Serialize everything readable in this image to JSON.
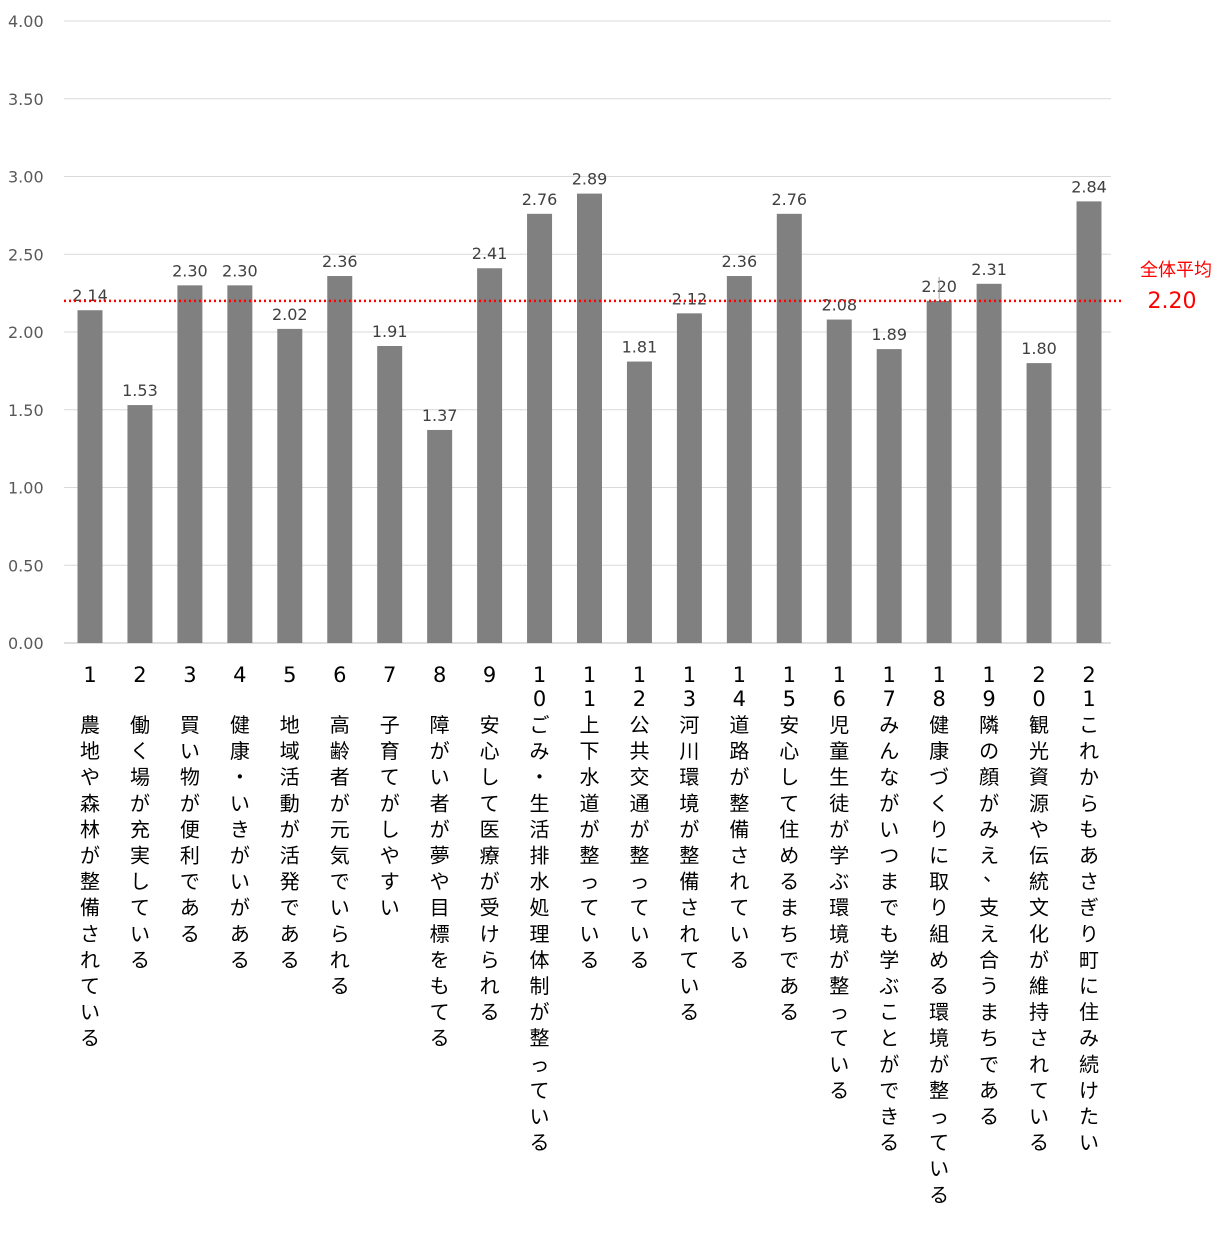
{
  "chart_data": {
    "type": "bar",
    "ylim": [
      0,
      4
    ],
    "yticks": [
      "0.00",
      "0.50",
      "1.00",
      "1.50",
      "2.00",
      "2.50",
      "3.00",
      "3.50",
      "4.00"
    ],
    "grid": true,
    "bar_color": "#808080",
    "categories": [
      {
        "num": "1",
        "label": "農地や森林が整備されている"
      },
      {
        "num": "2",
        "label": "働く場が充実している"
      },
      {
        "num": "3",
        "label": "買い物が便利である"
      },
      {
        "num": "4",
        "label": "健康・いきがいがある"
      },
      {
        "num": "5",
        "label": "地域活動が活発である"
      },
      {
        "num": "6",
        "label": "高齢者が元気でいられる"
      },
      {
        "num": "7",
        "label": "子育てがしやすい"
      },
      {
        "num": "8",
        "label": "障がい者が夢や目標をもてる"
      },
      {
        "num": "9",
        "label": "安心して医療が受けられる"
      },
      {
        "num": "10",
        "label": "ごみ・生活排水処理体制が整っている"
      },
      {
        "num": "11",
        "label": "上下水道が整っている"
      },
      {
        "num": "12",
        "label": "公共交通が整っている"
      },
      {
        "num": "13",
        "label": "河川環境が整備されている"
      },
      {
        "num": "14",
        "label": "道路が整備されている"
      },
      {
        "num": "15",
        "label": "安心して住めるまちである"
      },
      {
        "num": "16",
        "label": "児童生徒が学ぶ環境が整っている"
      },
      {
        "num": "17",
        "label": "みんながいつまでも学ぶことができる"
      },
      {
        "num": "18",
        "label": "健康づくりに取り組める環境が整っている"
      },
      {
        "num": "19",
        "label": "隣の顔がみえ、支え合うまちである"
      },
      {
        "num": "20",
        "label": "観光資源や伝統文化が維持されている"
      },
      {
        "num": "21",
        "label": "これからもあさぎり町に住み続けたい"
      }
    ],
    "values": [
      2.14,
      1.53,
      2.3,
      2.3,
      2.02,
      2.36,
      1.91,
      1.37,
      2.41,
      2.76,
      2.89,
      1.81,
      2.12,
      2.36,
      2.76,
      2.08,
      1.89,
      2.2,
      2.31,
      1.8,
      2.84
    ],
    "value_labels": [
      "2.14",
      "1.53",
      "2.30",
      "2.30",
      "2.02",
      "2.36",
      "1.91",
      "1.37",
      "2.41",
      "2.76",
      "2.89",
      "1.81",
      "2.12",
      "2.36",
      "2.76",
      "2.08",
      "1.89",
      "2.20",
      "2.31",
      "1.80",
      "2.84"
    ],
    "average": {
      "label": "全体平均",
      "value": 2.2,
      "value_label": "2.20",
      "color": "#ff0000"
    }
  }
}
